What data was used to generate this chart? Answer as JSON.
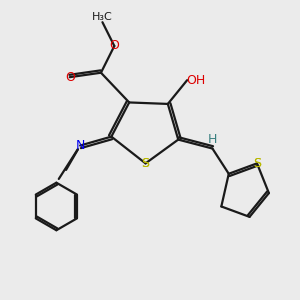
{
  "bg_color": "#ebebeb",
  "bond_color": "#1a1a1a",
  "S_color": "#b8b800",
  "O_color": "#dd0000",
  "N_color": "#0000ee",
  "H_color": "#3a8080",
  "line_width": 1.6,
  "doff": 0.07,
  "figsize": [
    3.0,
    3.0
  ],
  "dpi": 100,
  "xlim": [
    0,
    10
  ],
  "ylim": [
    0,
    10
  ]
}
